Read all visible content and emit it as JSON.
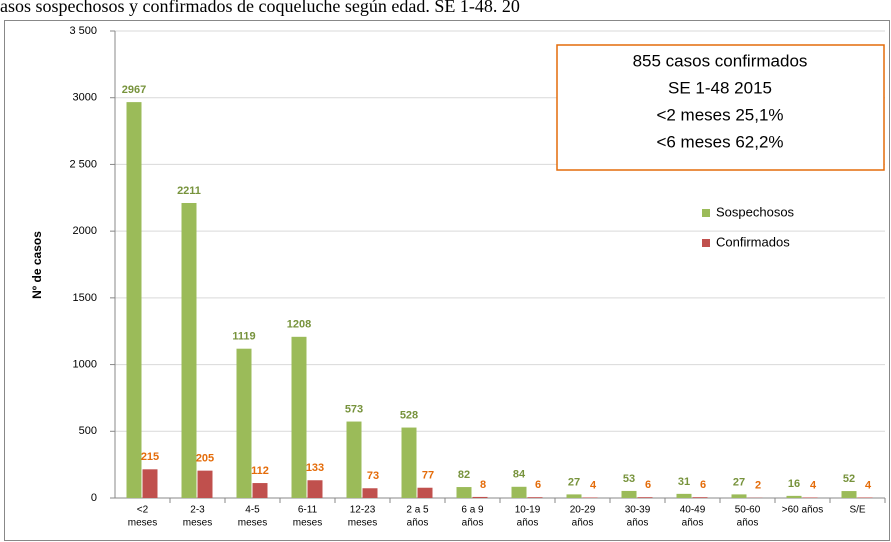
{
  "chart_data": {
    "type": "bar",
    "title": "asos sospechosos y confirmados de coqueluche según edad. SE 1-48. 20",
    "y_label": "Nº de casos",
    "categories": [
      [
        "<2",
        "meses"
      ],
      [
        "2-3",
        "meses"
      ],
      [
        "4-5",
        "meses"
      ],
      [
        "6-11",
        "meses"
      ],
      [
        "12-23",
        "meses"
      ],
      [
        "2 a 5",
        "años"
      ],
      [
        "6 a 9",
        "años"
      ],
      [
        "10-19",
        "años"
      ],
      [
        "20-29",
        "años"
      ],
      [
        "30-39",
        "años"
      ],
      [
        "40-49",
        "años"
      ],
      [
        "50-60",
        "años"
      ],
      [
        ">60 años"
      ],
      [
        "S/E"
      ]
    ],
    "series": [
      {
        "name": "Sospechosos",
        "color": "#9bbb59",
        "label_color": "#77933c",
        "values": [
          2967,
          2211,
          1119,
          1208,
          573,
          528,
          82,
          84,
          27,
          53,
          31,
          27,
          16,
          52
        ]
      },
      {
        "name": "Confirmados",
        "color": "#c0504d",
        "label_color": "#e46c0a",
        "values": [
          215,
          205,
          112,
          133,
          73,
          77,
          8,
          6,
          4,
          6,
          6,
          2,
          4,
          4
        ]
      }
    ],
    "ylim": [
      0,
      3500
    ],
    "yticks": [
      0,
      500,
      1000,
      1500,
      2000,
      {
        "value": 2500,
        "label": "2 500"
      },
      3000,
      {
        "value": 3500,
        "label": "3 500"
      }
    ],
    "grid": true,
    "annotation": [
      "855 casos confirmados",
      "SE 1-48 2015",
      "<2 meses 25,1%",
      "<6 meses 62,2%"
    ]
  }
}
